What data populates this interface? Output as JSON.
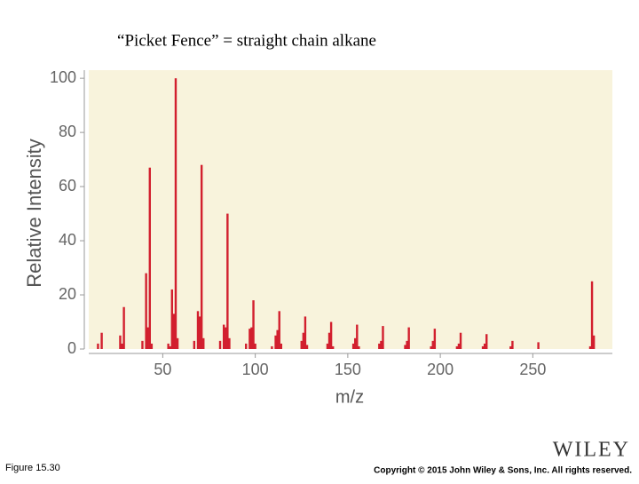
{
  "chart_data": {
    "type": "bar",
    "title": "“Picket Fence” = straight chain alkane",
    "xlabel": "m/z",
    "ylabel": "Relative Intensity",
    "color": "#d21f2e",
    "background": "#f8f3dc",
    "x": [
      15,
      17,
      27,
      28,
      29,
      39,
      41,
      42,
      43,
      44,
      53,
      54,
      55,
      56,
      57,
      58,
      67,
      69,
      70,
      71,
      72,
      81,
      83,
      84,
      85,
      86,
      95,
      97,
      98,
      99,
      100,
      109,
      111,
      112,
      113,
      114,
      125,
      126,
      127,
      128,
      139,
      140,
      141,
      142,
      153,
      154,
      155,
      156,
      167,
      168,
      169,
      181,
      182,
      183,
      195,
      196,
      197,
      209,
      210,
      211,
      223,
      224,
      225,
      238,
      239,
      253,
      281,
      282,
      283
    ],
    "values": [
      2,
      6,
      5,
      2,
      15.5,
      3,
      28,
      8,
      67,
      2,
      2,
      1,
      22,
      13,
      100,
      4,
      3,
      14,
      12,
      68,
      4,
      3,
      9,
      8,
      50,
      4,
      2,
      7.5,
      8,
      18,
      2,
      1,
      5,
      7,
      14,
      2,
      3,
      6,
      12,
      1.5,
      2,
      6,
      10,
      1,
      2,
      4,
      9,
      1,
      2,
      3,
      8.5,
      1.5,
      3,
      8,
      1,
      3,
      7.5,
      1,
      2,
      6,
      1,
      2,
      5.5,
      1,
      3,
      2.5,
      1,
      25,
      5
    ],
    "xlim": [
      10,
      293
    ],
    "ylim": [
      0,
      103
    ],
    "xticks": [
      50,
      100,
      150,
      200,
      250
    ],
    "yticks": [
      0,
      20,
      40,
      60,
      80,
      100
    ]
  },
  "figure_label": "Figure 15.30",
  "logo": "WILEY",
  "copyright": "Copyright © 2015 John Wiley & Sons, Inc. All rights reserved."
}
